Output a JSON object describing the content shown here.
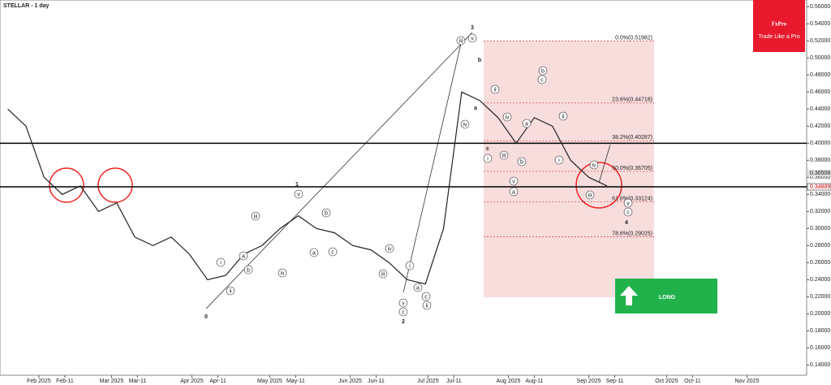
{
  "chart_data": {
    "type": "line",
    "title": "STELLAR - 1 day",
    "x": [
      "2025-01-20",
      "2025-01-27",
      "2025-02-03",
      "2025-02-10",
      "2025-02-17",
      "2025-02-24",
      "2025-03-03",
      "2025-03-10",
      "2025-03-17",
      "2025-03-24",
      "2025-03-31",
      "2025-04-07",
      "2025-04-14",
      "2025-04-21",
      "2025-04-28",
      "2025-05-05",
      "2025-05-12",
      "2025-05-19",
      "2025-05-26",
      "2025-06-02",
      "2025-06-09",
      "2025-06-16",
      "2025-06-23",
      "2025-06-30",
      "2025-07-07",
      "2025-07-14",
      "2025-07-21",
      "2025-07-28",
      "2025-08-04",
      "2025-08-11",
      "2025-08-18",
      "2025-08-25",
      "2025-09-01",
      "2025-09-08"
    ],
    "series": [
      {
        "color": "#222222",
        "values": [
          0.44,
          0.42,
          0.36,
          0.34,
          0.35,
          0.32,
          0.33,
          0.29,
          0.28,
          0.29,
          0.27,
          0.24,
          0.245,
          0.27,
          0.28,
          0.3,
          0.315,
          0.3,
          0.295,
          0.28,
          0.275,
          0.26,
          0.24,
          0.235,
          0.3,
          0.46,
          0.45,
          0.43,
          0.4,
          0.43,
          0.42,
          0.38,
          0.36,
          0.35
        ]
      }
    ],
    "xlim": [
      "2025-01-17",
      "2025-11-24"
    ],
    "xticks": [
      {
        "value": "2025-02-01",
        "label": "Feb 2025"
      },
      {
        "value": "2025-02-11",
        "label": "Feb-11"
      },
      {
        "value": "2025-03-01",
        "label": "Mar 2025"
      },
      {
        "value": "2025-03-11",
        "label": "Mar-11"
      },
      {
        "value": "2025-04-01",
        "label": "Apr 2025"
      },
      {
        "value": "2025-04-11",
        "label": "Apr-11"
      },
      {
        "value": "2025-05-01",
        "label": "May 2025"
      },
      {
        "value": "2025-05-11",
        "label": "May-11"
      },
      {
        "value": "2025-06-01",
        "label": "Jun 2025"
      },
      {
        "value": "2025-06-11",
        "label": "Jun-11"
      },
      {
        "value": "2025-07-01",
        "label": "Jul 2025"
      },
      {
        "value": "2025-07-11",
        "label": "Jul-11"
      },
      {
        "value": "2025-08-01",
        "label": "Aug 2025"
      },
      {
        "value": "2025-08-11",
        "label": "Aug-11"
      },
      {
        "value": "2025-09-01",
        "label": "Sep 2025"
      },
      {
        "value": "2025-09-11",
        "label": "Sep-11"
      },
      {
        "value": "2025-10-01",
        "label": "Oct 2025"
      },
      {
        "value": "2025-10-11",
        "label": "Oct-11"
      },
      {
        "value": "2025-11-01",
        "label": "Nov 2025"
      }
    ],
    "ylim": [
      0.128,
      0.566
    ],
    "yticks": [
      {
        "value": 0.14,
        "label": "0.14000"
      },
      {
        "value": 0.16,
        "label": "0.16000"
      },
      {
        "value": 0.18,
        "label": "0.18000"
      },
      {
        "value": 0.2,
        "label": "0.20000"
      },
      {
        "value": 0.22,
        "label": "0.22000"
      },
      {
        "value": 0.24,
        "label": "0.24000"
      },
      {
        "value": 0.26,
        "label": "0.26000"
      },
      {
        "value": 0.28,
        "label": "0.28000"
      },
      {
        "value": 0.3,
        "label": "0.30000"
      },
      {
        "value": 0.32,
        "label": "0.32000"
      },
      {
        "value": 0.34,
        "label": "0.34000"
      },
      {
        "value": 0.36,
        "label": "0.36000"
      },
      {
        "value": 0.38,
        "label": "0.38000"
      },
      {
        "value": 0.4,
        "label": "0.40000"
      },
      {
        "value": 0.42,
        "label": "0.42000"
      },
      {
        "value": 0.44,
        "label": "0.44000"
      },
      {
        "value": 0.46,
        "label": "0.46000"
      },
      {
        "value": 0.48,
        "label": "0.48000"
      },
      {
        "value": 0.5,
        "label": "0.50000"
      },
      {
        "value": 0.52,
        "label": "0.52000"
      },
      {
        "value": 0.54,
        "label": "0.54000"
      },
      {
        "value": 0.56,
        "label": "0.56000"
      }
    ],
    "levels": [
      0.4,
      0.34889
    ],
    "price_labels": [
      {
        "value": 0.36508,
        "label": "0.36508"
      },
      {
        "value": 0.34889,
        "label": "0.34889"
      }
    ],
    "fib_levels": [
      {
        "value": 0.51982,
        "label": "0.0%(0.51982)"
      },
      {
        "value": 0.44718,
        "label": "23.6%(0.44718)"
      },
      {
        "value": 0.40287,
        "label": "38.2%(0.40287)"
      },
      {
        "value": 0.36705,
        "label": "50.0%(0.36705)"
      },
      {
        "value": 0.33124,
        "label": "61.8%(0.33124)"
      },
      {
        "value": 0.29025,
        "label": "78.6%(0.29025)"
      }
    ],
    "wave_labels": [
      "0",
      "1",
      "2",
      "3",
      "4",
      "a",
      "b",
      "c"
    ],
    "circled_labels": [
      "i",
      "ii",
      "iii",
      "iv",
      "v",
      "a",
      "b",
      "v",
      "c",
      "i",
      "a",
      "c",
      "ii",
      "iii",
      "iv",
      "iii",
      "v",
      "iv",
      "i",
      "ii",
      "iii",
      "iv",
      "v",
      "a",
      "b",
      "a",
      "b",
      "c",
      "i",
      "ii",
      "iv",
      "iii",
      "v",
      "c",
      "a",
      "b",
      "c"
    ],
    "signal": "LONG"
  },
  "logo": {
    "name": "FxPro",
    "tagline": "Trade Like a Pro"
  }
}
